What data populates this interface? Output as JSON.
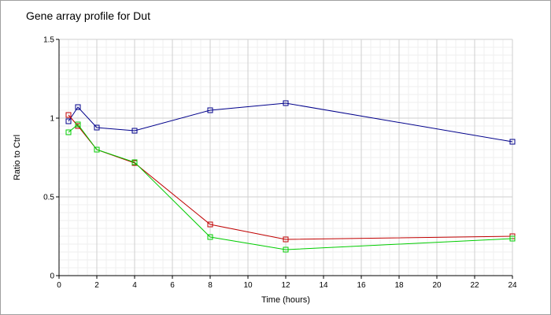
{
  "chart_data": {
    "type": "line",
    "title": "Gene array profile for Dut",
    "xlabel": "Time (hours)",
    "ylabel": "Ratio to Ctrl",
    "xlim": [
      0,
      24
    ],
    "ylim": [
      0,
      1.5
    ],
    "x_ticks": [
      "0",
      "2",
      "4",
      "6",
      "8",
      "10",
      "12",
      "14",
      "16",
      "18",
      "20",
      "22",
      "24"
    ],
    "y_ticks": [
      "0",
      "0.5",
      "1",
      "1.5"
    ],
    "grid": true,
    "legend": "none",
    "series": [
      {
        "color": "#00008b",
        "x": [
          0.5,
          1,
          2,
          4,
          8,
          12,
          24
        ],
        "y": [
          0.98,
          1.07,
          0.94,
          0.92,
          1.05,
          1.095,
          0.85
        ]
      },
      {
        "color": "#c00000",
        "x": [
          0.5,
          1,
          2,
          4,
          8,
          12,
          24
        ],
        "y": [
          1.02,
          0.95,
          0.8,
          0.715,
          0.325,
          0.23,
          0.25
        ]
      },
      {
        "color": "#00cc00",
        "x": [
          0.5,
          1,
          2,
          4,
          8,
          12,
          24
        ],
        "y": [
          0.91,
          0.96,
          0.8,
          0.72,
          0.245,
          0.165,
          0.235
        ]
      }
    ]
  }
}
